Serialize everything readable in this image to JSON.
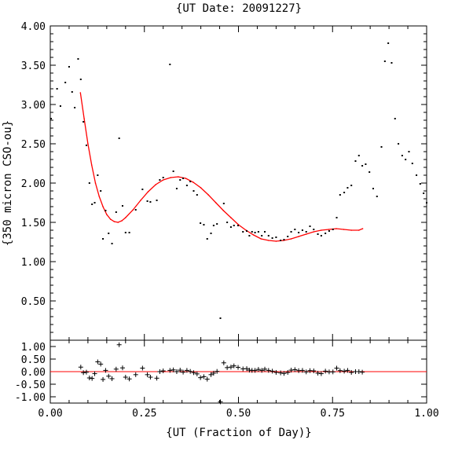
{
  "chart_data": [
    {
      "type": "scatter",
      "panel": "main",
      "title": "{UT Date: 20091227}",
      "xlabel": "",
      "ylabel": "{350 micron CSO-ou}",
      "xlim": [
        0.0,
        1.0
      ],
      "ylim": [
        0.0,
        4.0
      ],
      "grid": false,
      "y_ticks": [
        0.5,
        1.0,
        1.5,
        2.0,
        2.5,
        3.0,
        3.5,
        4.0
      ],
      "y_tick_labels": [
        "0.50",
        "1.00",
        "1.50",
        "2.00",
        "2.50",
        "3.00",
        "3.50",
        "4.00"
      ],
      "series": [
        {
          "kind": "points",
          "color": "#000000",
          "x": [
            0.002,
            0.018,
            0.027,
            0.04,
            0.05,
            0.058,
            0.065,
            0.074,
            0.081,
            0.088,
            0.096,
            0.104,
            0.111,
            0.118,
            0.126,
            0.134,
            0.14,
            0.147,
            0.155,
            0.164,
            0.175,
            0.183,
            0.192,
            0.2,
            0.21,
            0.227,
            0.245,
            0.258,
            0.266,
            0.283,
            0.291,
            0.3,
            0.318,
            0.327,
            0.336,
            0.345,
            0.353,
            0.363,
            0.372,
            0.381,
            0.39,
            0.399,
            0.408,
            0.417,
            0.427,
            0.434,
            0.443,
            0.452,
            0.461,
            0.47,
            0.48,
            0.488,
            0.499,
            0.512,
            0.522,
            0.529,
            0.536,
            0.544,
            0.553,
            0.562,
            0.57,
            0.58,
            0.59,
            0.6,
            0.612,
            0.621,
            0.631,
            0.64,
            0.65,
            0.66,
            0.67,
            0.68,
            0.69,
            0.7,
            0.711,
            0.72,
            0.731,
            0.741,
            0.751,
            0.761,
            0.77,
            0.781,
            0.79,
            0.8,
            0.811,
            0.82,
            0.829,
            0.838,
            0.848,
            0.858,
            0.868,
            0.88,
            0.889,
            0.898,
            0.907,
            0.916,
            0.925,
            0.935,
            0.944,
            0.953,
            0.962,
            0.973,
            0.983,
            0.992,
            1.0
          ],
          "y": [
            2.82,
            3.2,
            2.98,
            3.28,
            3.48,
            3.16,
            2.96,
            3.58,
            3.32,
            2.78,
            2.48,
            2.0,
            1.73,
            1.75,
            2.1,
            1.9,
            1.29,
            1.65,
            1.36,
            1.23,
            1.63,
            2.57,
            1.71,
            1.37,
            1.37,
            1.66,
            1.92,
            1.77,
            1.76,
            1.78,
            2.04,
            2.07,
            3.51,
            2.15,
            1.93,
            2.04,
            2.06,
            1.97,
            2.02,
            1.9,
            1.85,
            1.49,
            1.47,
            1.29,
            1.36,
            1.46,
            1.48,
            0.28,
            1.74,
            1.5,
            1.44,
            1.46,
            1.46,
            1.38,
            1.39,
            1.33,
            1.38,
            1.37,
            1.38,
            1.33,
            1.38,
            1.33,
            1.3,
            1.31,
            1.27,
            1.28,
            1.32,
            1.38,
            1.41,
            1.37,
            1.4,
            1.38,
            1.45,
            1.41,
            1.35,
            1.33,
            1.36,
            1.39,
            1.41,
            1.56,
            1.85,
            1.88,
            1.94,
            1.97,
            2.28,
            2.35,
            2.22,
            2.24,
            2.14,
            1.93,
            1.83,
            2.46,
            3.55,
            3.78,
            3.53,
            2.82,
            2.5,
            2.35,
            2.3,
            2.4,
            2.25,
            2.1,
            1.99,
            1.87,
            1.75
          ]
        },
        {
          "kind": "fit-curve",
          "color": "#ff0000",
          "x": [
            0.08,
            0.09,
            0.1,
            0.11,
            0.12,
            0.13,
            0.14,
            0.15,
            0.16,
            0.17,
            0.18,
            0.19,
            0.2,
            0.22,
            0.24,
            0.26,
            0.28,
            0.3,
            0.32,
            0.34,
            0.36,
            0.38,
            0.4,
            0.42,
            0.44,
            0.46,
            0.48,
            0.5,
            0.52,
            0.54,
            0.56,
            0.58,
            0.6,
            0.62,
            0.64,
            0.66,
            0.68,
            0.7,
            0.72,
            0.74,
            0.76,
            0.78,
            0.8,
            0.82,
            0.83
          ],
          "y": [
            3.15,
            2.82,
            2.5,
            2.23,
            2.0,
            1.83,
            1.7,
            1.6,
            1.54,
            1.51,
            1.5,
            1.52,
            1.56,
            1.66,
            1.78,
            1.89,
            1.98,
            2.04,
            2.07,
            2.08,
            2.06,
            2.01,
            1.94,
            1.85,
            1.75,
            1.65,
            1.56,
            1.47,
            1.4,
            1.34,
            1.29,
            1.27,
            1.26,
            1.27,
            1.29,
            1.32,
            1.35,
            1.38,
            1.4,
            1.41,
            1.42,
            1.41,
            1.4,
            1.4,
            1.42
          ]
        }
      ]
    },
    {
      "type": "scatter",
      "panel": "residuals",
      "xlabel": "{UT (Fraction of Day)}",
      "ylabel": "",
      "xlim": [
        0.0,
        1.0
      ],
      "ylim": [
        -1.25,
        1.25
      ],
      "grid": false,
      "x_ticks": [
        0.0,
        0.25,
        0.5,
        0.75,
        1.0
      ],
      "x_tick_labels": [
        "0.00",
        "0.25",
        "0.50",
        "0.75",
        "1.00"
      ],
      "y_ticks": [
        -1.0,
        -0.5,
        0.0,
        0.5,
        1.0
      ],
      "y_tick_labels": [
        "-1.00",
        "-0.50",
        "0.00",
        "0.50",
        "1.00"
      ],
      "zero_line_color": "#ff0000",
      "series": [
        {
          "kind": "residual-crosses",
          "color": "#000000",
          "x": [
            0.081,
            0.088,
            0.096,
            0.104,
            0.111,
            0.118,
            0.126,
            0.134,
            0.14,
            0.147,
            0.155,
            0.164,
            0.175,
            0.183,
            0.192,
            0.2,
            0.21,
            0.227,
            0.245,
            0.258,
            0.266,
            0.283,
            0.291,
            0.3,
            0.318,
            0.327,
            0.336,
            0.345,
            0.353,
            0.363,
            0.372,
            0.381,
            0.39,
            0.399,
            0.408,
            0.417,
            0.427,
            0.434,
            0.443,
            0.452,
            0.461,
            0.47,
            0.48,
            0.488,
            0.499,
            0.512,
            0.522,
            0.529,
            0.536,
            0.544,
            0.553,
            0.562,
            0.57,
            0.58,
            0.59,
            0.6,
            0.612,
            0.621,
            0.631,
            0.64,
            0.65,
            0.66,
            0.67,
            0.68,
            0.69,
            0.7,
            0.711,
            0.72,
            0.731,
            0.741,
            0.751,
            0.761,
            0.77,
            0.781,
            0.79,
            0.8,
            0.811,
            0.82,
            0.829
          ],
          "y": [
            0.18,
            -0.04,
            -0.02,
            -0.25,
            -0.27,
            -0.08,
            0.39,
            0.3,
            -0.31,
            0.05,
            -0.18,
            -0.28,
            0.1,
            1.07,
            0.15,
            -0.22,
            -0.29,
            -0.12,
            0.14,
            -0.12,
            -0.22,
            -0.26,
            0.0,
            0.03,
            0.05,
            0.07,
            0.0,
            0.06,
            -0.02,
            0.05,
            0.01,
            -0.04,
            -0.09,
            -0.24,
            -0.2,
            -0.3,
            -0.12,
            -0.06,
            0.01,
            -1.2,
            0.35,
            0.16,
            0.18,
            0.23,
            0.17,
            0.11,
            0.12,
            0.06,
            0.05,
            0.05,
            0.09,
            0.05,
            0.1,
            0.05,
            0.02,
            -0.03,
            -0.05,
            -0.07,
            -0.03,
            0.06,
            0.08,
            0.04,
            0.05,
            -0.01,
            0.04,
            0.03,
            -0.06,
            -0.08,
            0.02,
            -0.01,
            -0.01,
            0.14,
            0.04,
            0.02,
            0.05,
            -0.03,
            0.0,
            0.0,
            -0.02
          ]
        }
      ]
    }
  ]
}
